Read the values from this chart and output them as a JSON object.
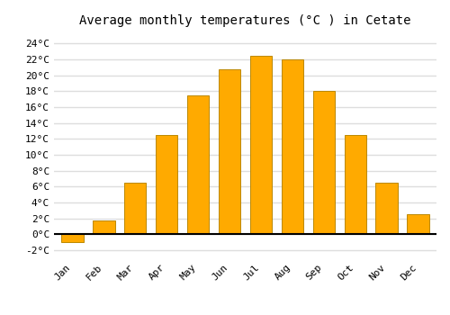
{
  "title": "Average monthly temperatures (°C ) in Cetate",
  "months": [
    "Jan",
    "Feb",
    "Mar",
    "Apr",
    "May",
    "Jun",
    "Jul",
    "Aug",
    "Sep",
    "Oct",
    "Nov",
    "Dec"
  ],
  "values": [
    -1.0,
    1.8,
    6.5,
    12.5,
    17.5,
    20.7,
    22.5,
    22.0,
    18.0,
    12.5,
    6.5,
    2.5
  ],
  "bar_color": "#FFAA00",
  "bar_edge_color": "#BB8800",
  "ylim": [
    -3,
    25.5
  ],
  "yticks": [
    -2,
    0,
    2,
    4,
    6,
    8,
    10,
    12,
    14,
    16,
    18,
    20,
    22,
    24
  ],
  "ytick_labels": [
    "-2°C",
    "0°C",
    "2°C",
    "4°C",
    "6°C",
    "8°C",
    "10°C",
    "12°C",
    "14°C",
    "16°C",
    "18°C",
    "20°C",
    "22°C",
    "24°C"
  ],
  "background_color": "#ffffff",
  "grid_color": "#dddddd",
  "title_fontsize": 10,
  "tick_fontsize": 8,
  "font_family": "monospace"
}
